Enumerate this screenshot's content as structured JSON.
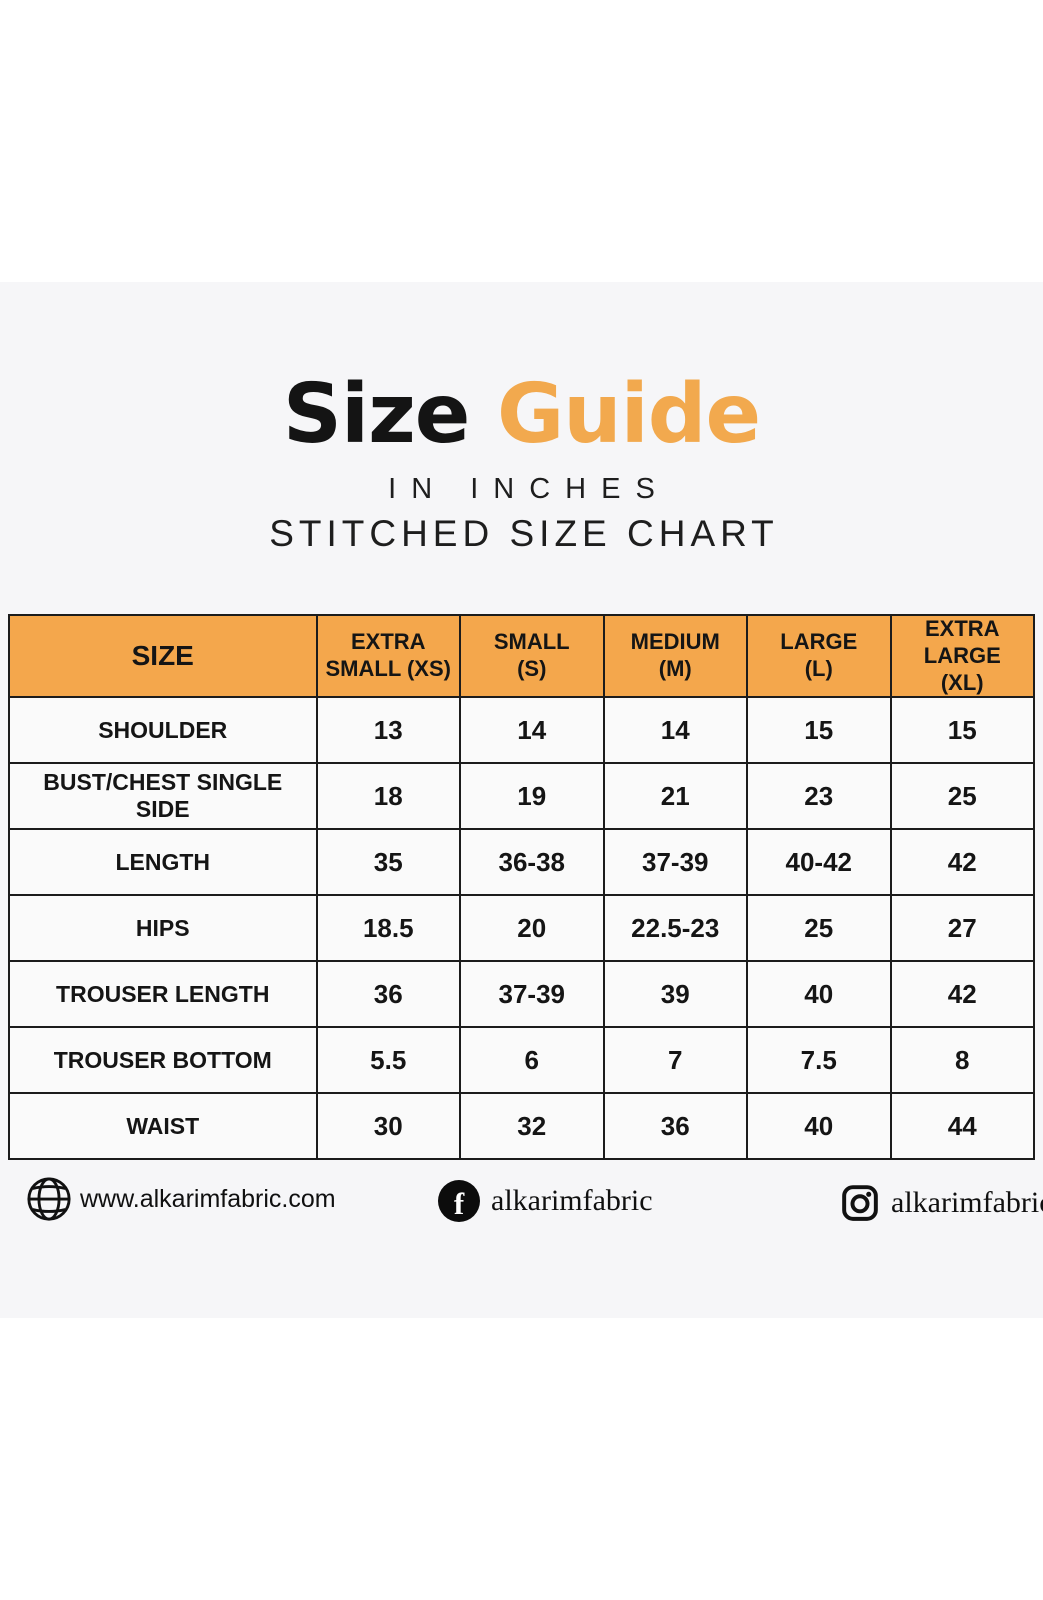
{
  "colors": {
    "page_background": "#ffffff",
    "band_background": "#f6f6f8",
    "header_orange": "#f4a74c",
    "title_accent_orange": "#f2a94e",
    "border_black": "#1c1c1c",
    "cell_background": "#fafafa"
  },
  "header": {
    "title_black": "Size",
    "title_accent": "Guide",
    "subtitle1": "IN INCHES",
    "subtitle2": "STITCHED SIZE CHART"
  },
  "chart_data": {
    "type": "table",
    "title": "Size Guide — Stitched Size Chart (in inches)",
    "columns": [
      {
        "line1": "SIZE",
        "line2": ""
      },
      {
        "line1": "EXTRA",
        "line2": "SMALL (XS)"
      },
      {
        "line1": "SMALL",
        "line2": "(S)"
      },
      {
        "line1": "MEDIUM",
        "line2": "(M)"
      },
      {
        "line1": "LARGE",
        "line2": "(L)"
      },
      {
        "line1": "EXTRA LARGE",
        "line2": "(XL)"
      }
    ],
    "rows": [
      {
        "label": "SHOULDER",
        "values": [
          "13",
          "14",
          "14",
          "15",
          "15"
        ]
      },
      {
        "label": "BUST/CHEST SINGLE SIDE",
        "values": [
          "18",
          "19",
          "21",
          "23",
          "25"
        ]
      },
      {
        "label": "LENGTH",
        "values": [
          "35",
          "36-38",
          "37-39",
          "40-42",
          "42"
        ]
      },
      {
        "label": "HIPS",
        "values": [
          "18.5",
          "20",
          "22.5-23",
          "25",
          "27"
        ]
      },
      {
        "label": "TROUSER LENGTH",
        "values": [
          "36",
          "37-39",
          "39",
          "40",
          "42"
        ]
      },
      {
        "label": "TROUSER BOTTOM",
        "values": [
          "5.5",
          "6",
          "7",
          "7.5",
          "8"
        ]
      },
      {
        "label": "WAIST",
        "values": [
          "30",
          "32",
          "36",
          "40",
          "44"
        ]
      }
    ]
  },
  "footer": {
    "website": {
      "icon": "globe-icon",
      "text": "www.alkarimfabric.com"
    },
    "facebook": {
      "icon": "facebook-icon",
      "glyph": "f",
      "text": "alkarimfabric"
    },
    "instagram": {
      "icon": "instagram-icon",
      "text": "alkarimfabrics"
    }
  }
}
